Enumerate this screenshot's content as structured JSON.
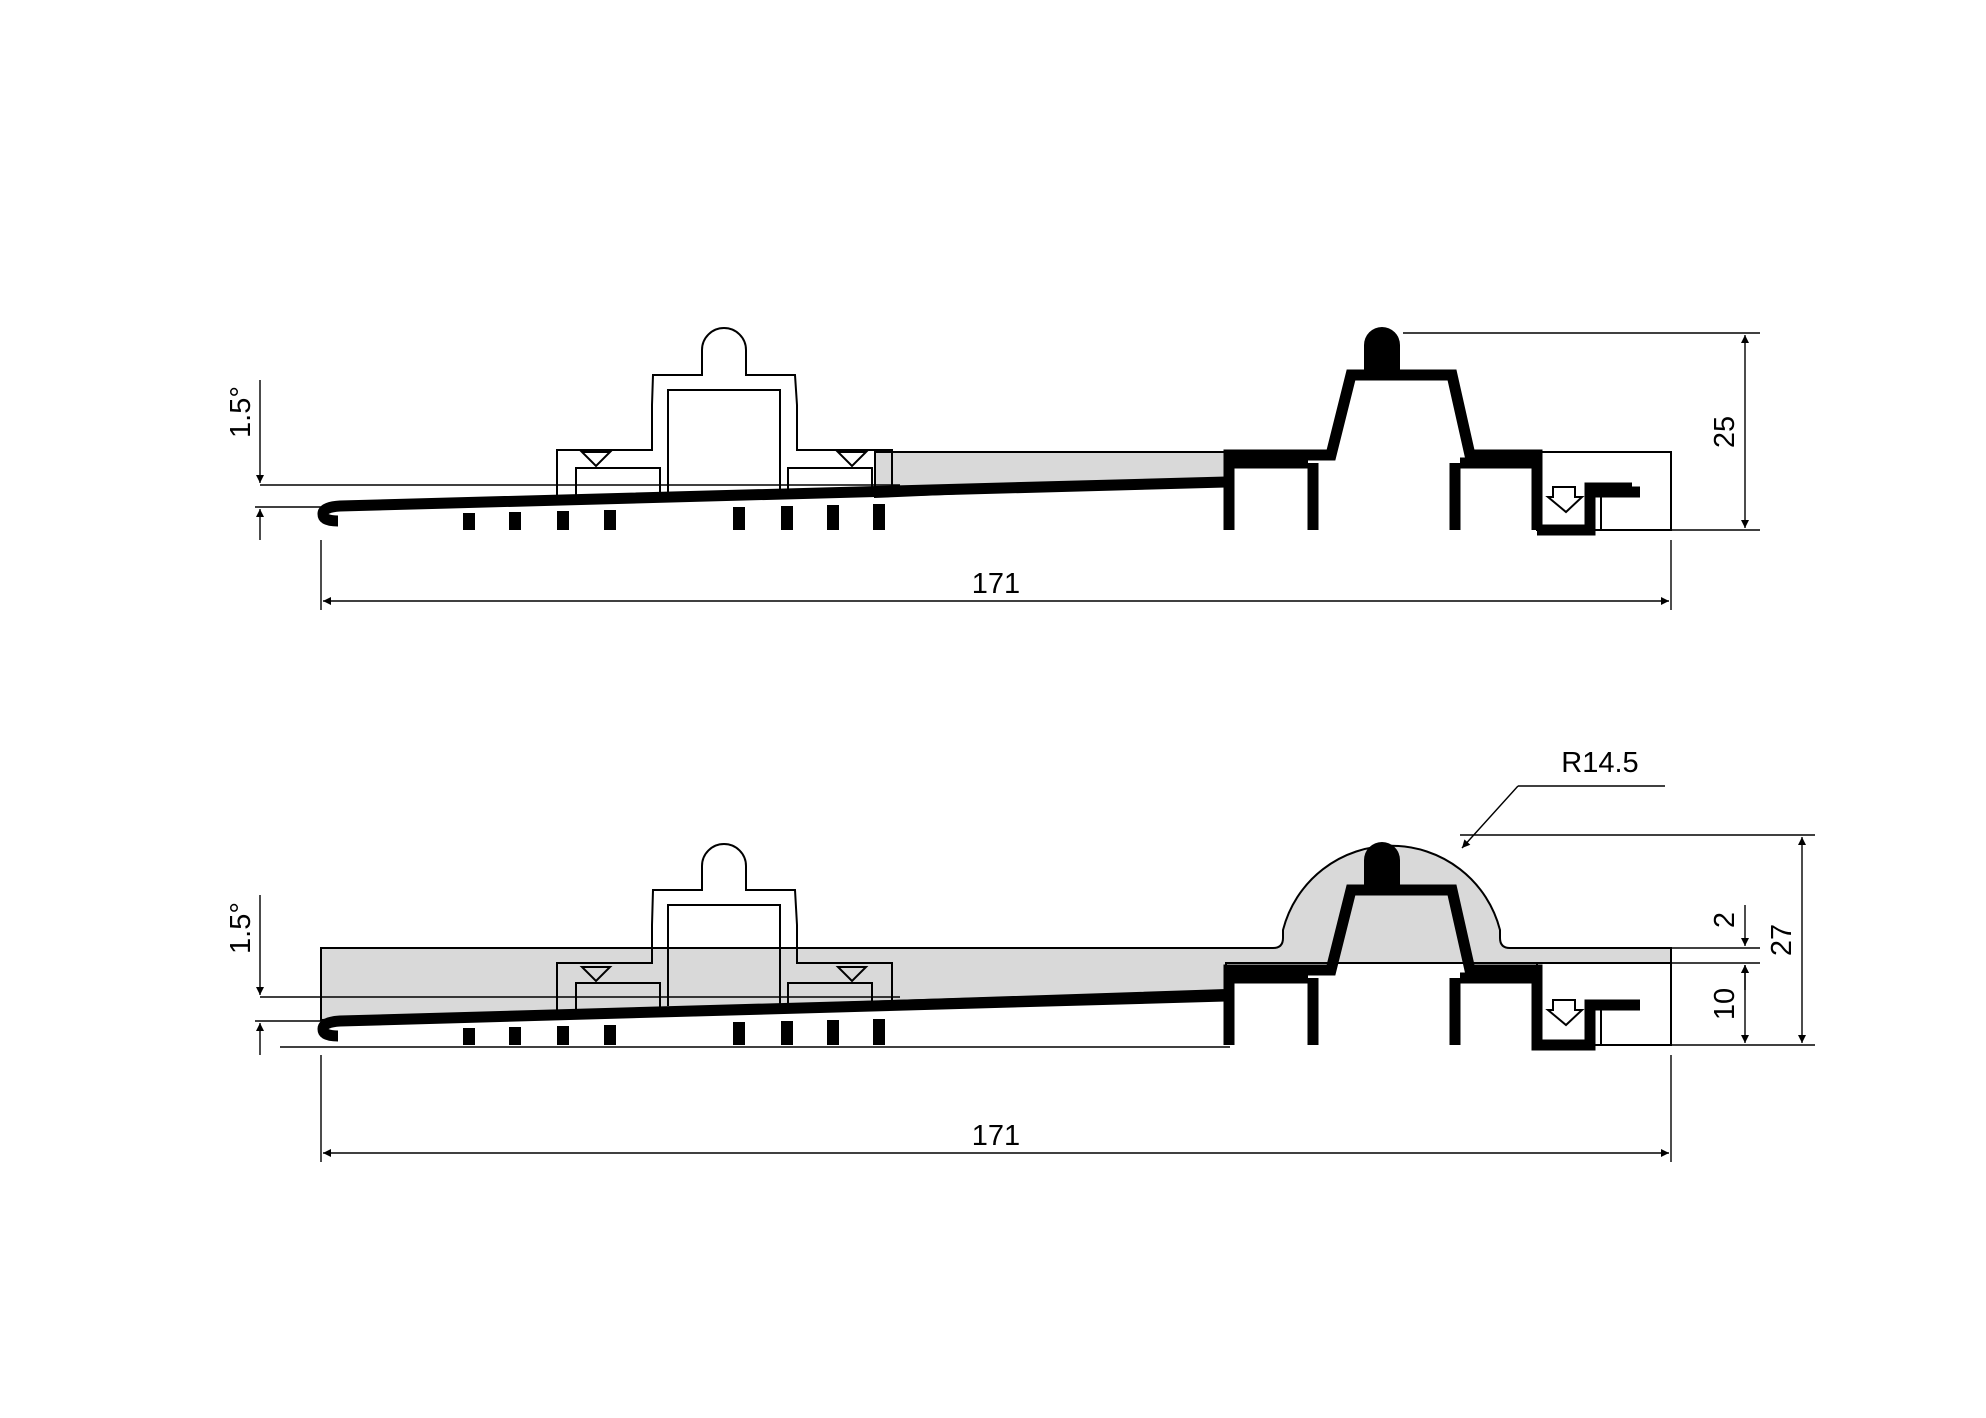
{
  "colors": {
    "line": "#000000",
    "fill": "#d9d9d9",
    "background": "#ffffff"
  },
  "top_view": {
    "angle_label": "1.5°",
    "width_label": "171",
    "height_label": "25"
  },
  "bottom_view": {
    "angle_label": "1.5°",
    "width_label": "171",
    "radius_label": "R14.5",
    "top_offset_label": "2",
    "total_height_label": "27",
    "lower_height_label": "10"
  }
}
